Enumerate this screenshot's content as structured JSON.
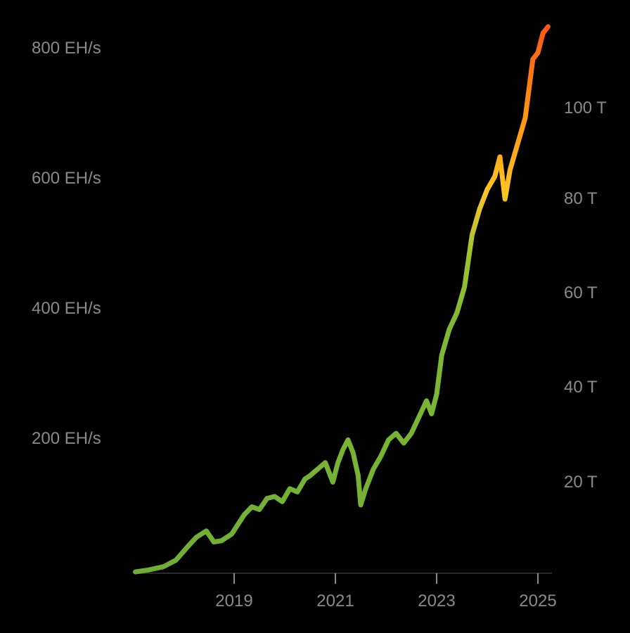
{
  "chart_data": {
    "type": "line",
    "title": "",
    "xlabel": "",
    "ylabel": "",
    "x_ticks": [
      "2019",
      "2021",
      "2023",
      "2025"
    ],
    "y_left_ticks": [
      "200 EH/s",
      "400 EH/s",
      "600 EH/s",
      "800 EH/s"
    ],
    "y_right_ticks": [
      "20 T",
      "40 T",
      "60 T",
      "80 T",
      "100 T"
    ],
    "ylim": [
      0,
      840
    ],
    "grid": false,
    "legend": "none",
    "colors": [
      "#6fae35",
      "#9ac42f",
      "#ffc423",
      "#ff9a12",
      "#ff5a14"
    ],
    "series": [
      {
        "x": [
          2017.05,
          2017.3,
          2017.6,
          2017.85,
          2018.05,
          2018.25,
          2018.45,
          2018.6,
          2018.75,
          2018.85,
          2018.95,
          2019.2,
          2019.35,
          2019.5,
          2019.65,
          2019.8,
          2019.95,
          2020.1,
          2020.25,
          2020.4,
          2020.5,
          2020.65,
          2020.8,
          2020.95,
          2021.05,
          2021.15,
          2021.25,
          2021.35,
          2021.45,
          2021.5,
          2021.6,
          2021.75,
          2021.9,
          2022.05,
          2022.2,
          2022.35,
          2022.5,
          2022.65,
          2022.8,
          2022.9,
          2023.0,
          2023.1,
          2023.25,
          2023.4,
          2023.55,
          2023.7,
          2023.85,
          2024.0,
          2024.15,
          2024.25,
          2024.35,
          2024.45,
          2024.6,
          2024.75,
          2024.9,
          2025.0,
          2025.1,
          2025.2
        ],
        "y": [
          2,
          5,
          10,
          20,
          38,
          55,
          65,
          48,
          50,
          55,
          60,
          90,
          102,
          98,
          115,
          118,
          110,
          130,
          125,
          145,
          150,
          160,
          170,
          140,
          170,
          190,
          205,
          185,
          150,
          105,
          130,
          160,
          180,
          205,
          215,
          200,
          215,
          240,
          265,
          245,
          275,
          335,
          375,
          400,
          440,
          520,
          560,
          590,
          610,
          640,
          575,
          620,
          660,
          700,
          790,
          800,
          830,
          840
        ]
      }
    ]
  }
}
